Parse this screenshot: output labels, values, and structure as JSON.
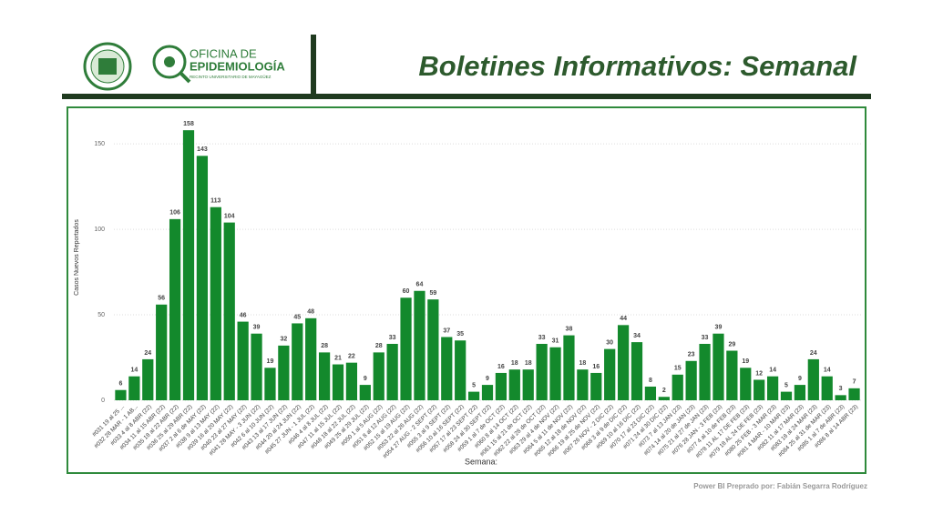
{
  "header": {
    "logo_line1": "OFICINA DE",
    "logo_line2": "EPIDEMIOLOGÍA",
    "logo_line3": "RECINTO UNIVERSITARIO DE MAYAGÜEZ",
    "title": "Boletines Informativos: Semanal"
  },
  "footer": "Power BI Preprado por: Fabián Segarra Rodríguez",
  "chart_data": {
    "type": "bar",
    "y_label": "Casos Nuevos Reportados",
    "x_label": "Semana:",
    "color": "#13892c",
    "categories": [
      "#031 19 al 25 ...",
      "#032 28 MAR - 1 AB...",
      "#033 4 al 8 ABR (22)",
      "#034 11 al 15 ABR (22)",
      "#035 18 al 22 ABR (22)",
      "#036 25 al 29 ABR (22)",
      "#037 2 al 6 de MAY (22)",
      "#038 9 al 13 MAY (22)",
      "#039 16 al 20 MAY (22)",
      "#040 23 al 27 MAY (22)",
      "#041 28 MAY - 3 JUN (22)",
      "#042 6 al 10 JUN (22)",
      "#043 13 al 17 JUN (22)",
      "#044 20 al 24 JUN (22)",
      "#045 27 JUN - 1 JUL (22)",
      "#046 4 al 8 JUL (22)",
      "#047 11 al 15 JUL (22)",
      "#048 18 al 22 JUL (22)",
      "#049 25 al 29 JUL (22)",
      "#050 1 al 5 AUG (22)",
      "#051 8 al 12 AUG (22)",
      "#052 15 al 19 AUG (22)",
      "#053 22 al 26 AUG (22)",
      "#054 27 AUG - 2 SEPT (22)",
      "#055 3 al 9 SEPT (22)",
      "#056 10 al 16 SEPT (22)",
      "#057 17 al 23 SEPT (22)",
      "#058 24 al 30 SEPT (22)",
      "#059 1 al 7 de OCT (22)",
      "#060 8 al 14 OCT (22)",
      "#061 15 al 21 de OCT (22)",
      "#062 22 al 28 de OCT (22)",
      "#063 29 al 4 de NOV (22)",
      "#064 5 al 11 de NOV (22)",
      "#065 12 al 18 de NOV (22)",
      "#066 19 al 25 de NOV (22)",
      "#067 26 NOV - 2 DIC (22)",
      "#068 3 al 9 de DIC (22)",
      "#069 10 al 16 DIC (22)",
      "#070 17 al 23 DIC (22)",
      "#071 24 al 30 DIC (22)",
      "#073 7 al 13 JAN (23)",
      "#074 14 al 20 de JAN (23)",
      "#075 21 al 27 de JAN (23)",
      "#076 28 JAN - 3 FEB (23)",
      "#077 4 al 10 de FEB (23)",
      "#078 11 AL 17 DE FEB (23)",
      "#079 18 AL 24 DE FEB (23)",
      "#080 25 FEB - 3 MAR (23)",
      "#081 4 MAR - 10 MAR (23)",
      "#082 11 al 17 MAR (23)",
      "#083 18 al 24 MAR (23)",
      "#084 25 al 31 de MAR (23)",
      "#085 1 al 7 de ABR (23)",
      "#086 8 al 14 ABR (23)"
    ],
    "values": [
      6,
      14,
      24,
      56,
      106,
      158,
      143,
      113,
      104,
      46,
      39,
      19,
      32,
      45,
      48,
      28,
      21,
      22,
      9,
      28,
      33,
      60,
      64,
      59,
      37,
      35,
      5,
      9,
      16,
      18,
      18,
      33,
      31,
      38,
      18,
      16,
      30,
      44,
      34,
      8,
      2,
      15,
      23,
      33,
      39,
      29,
      19,
      12,
      14,
      5,
      9,
      24,
      14,
      3,
      7
    ],
    "ylim": [
      0,
      165
    ],
    "yticks": [
      0,
      50,
      100,
      150
    ],
    "grid": true
  }
}
